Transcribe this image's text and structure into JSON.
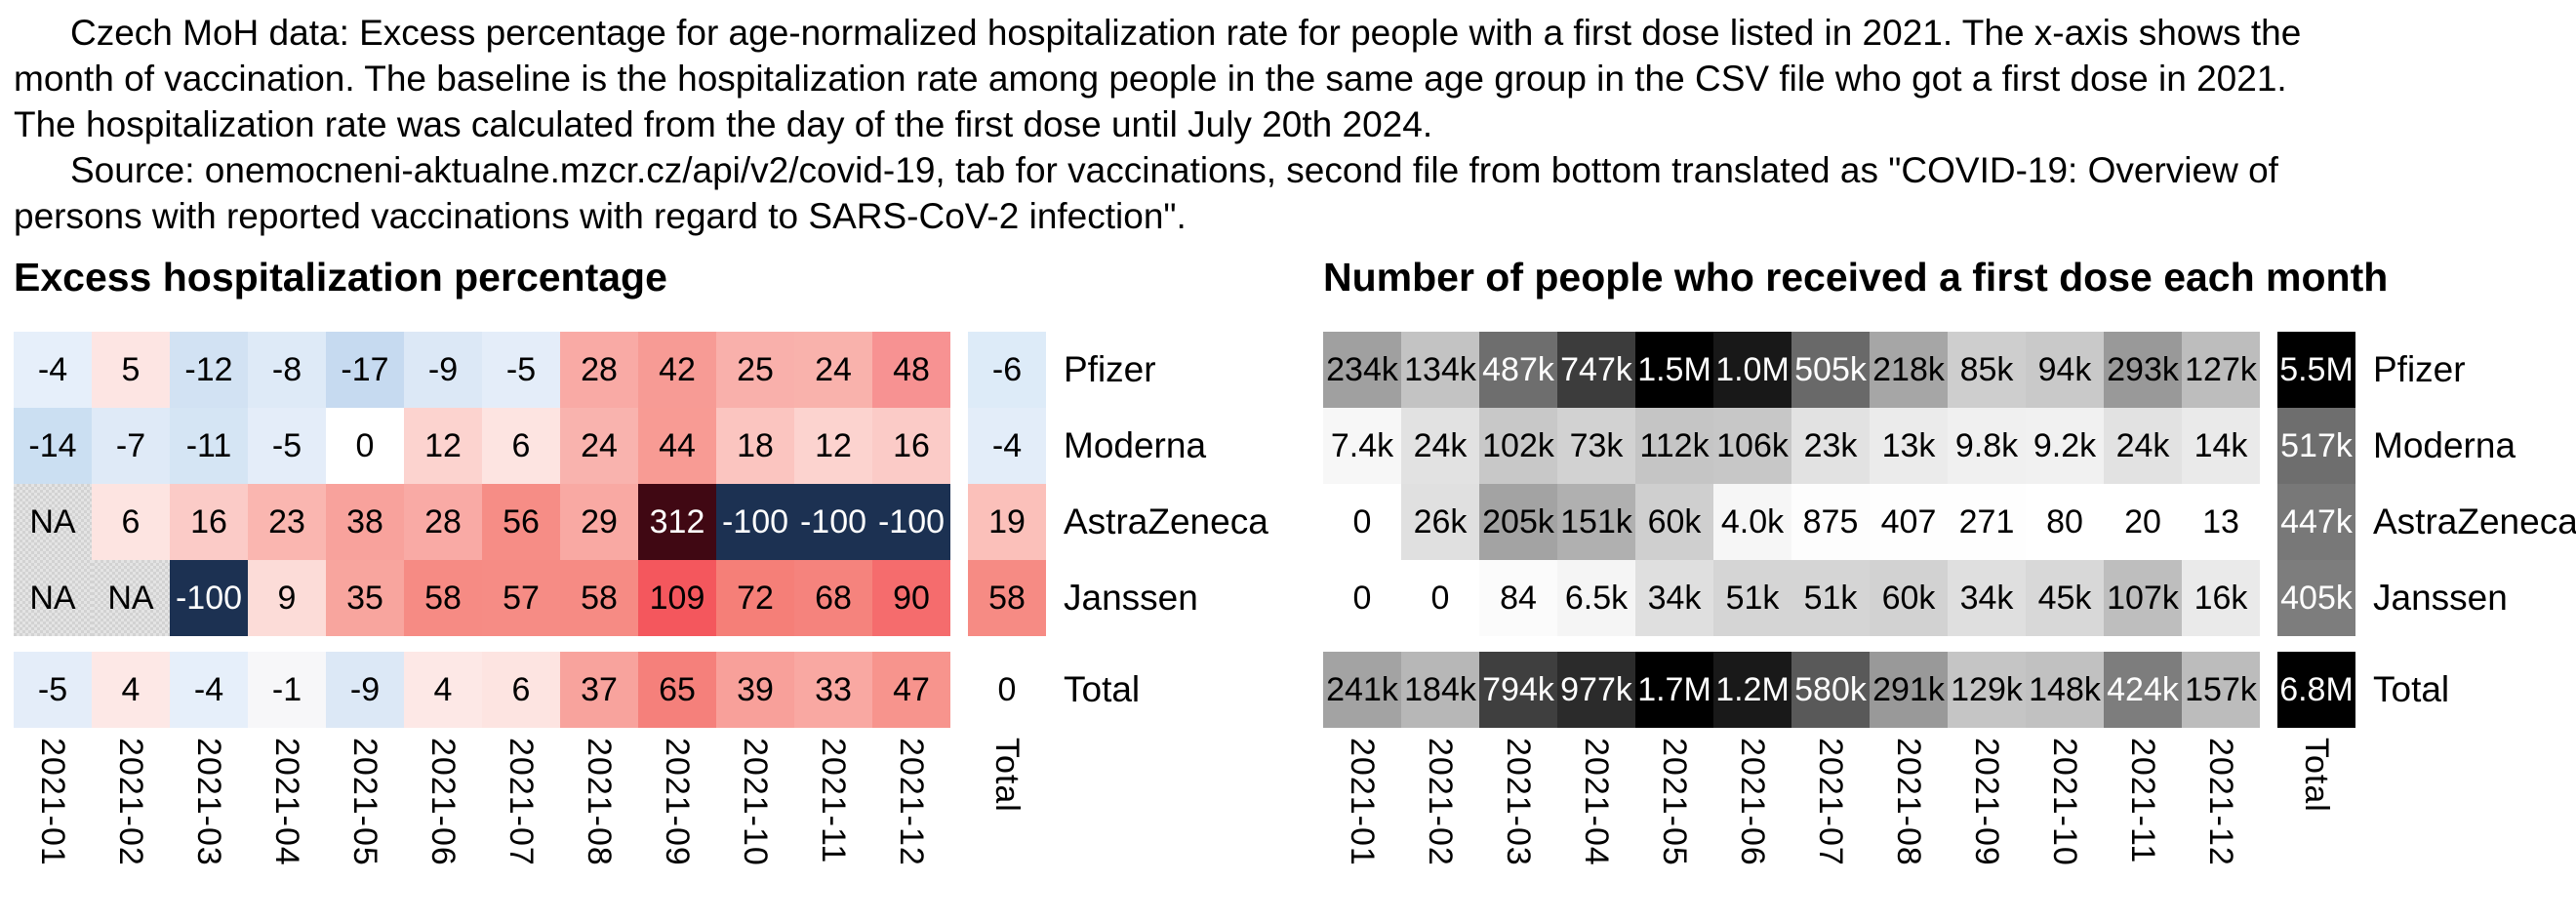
{
  "header": {
    "lines": [
      {
        "text": "Czech MoH data: Excess percentage for age-normalized hospitalization rate for people with a first dose listed in 2021. The x-axis shows the",
        "indent": true
      },
      {
        "text": "month of vaccination. The baseline is the hospitalization rate among people in the same age group in the CSV file who got a first dose in 2021.",
        "indent": false
      },
      {
        "text": "The hospitalization rate was calculated from the day of the first dose until July 20th 2024.",
        "indent": false
      },
      {
        "text": "Source: onemocneni-aktualne.mzcr.cz/api/v2/covid-19, tab for vaccinations, second file from bottom translated as \"COVID-19: Overview of",
        "indent": true
      },
      {
        "text": "persons with reported vaccinations with regard to SARS-CoV-2 infection\".",
        "indent": false
      }
    ]
  },
  "chart_data": [
    {
      "id": "excess-hospitalization",
      "type": "heatmap",
      "title": "Excess hospitalization percentage",
      "x_labels": [
        "2021-01",
        "2021-02",
        "2021-03",
        "2021-04",
        "2021-05",
        "2021-06",
        "2021-07",
        "2021-08",
        "2021-09",
        "2021-10",
        "2021-11",
        "2021-12"
      ],
      "total_column_label": "Total",
      "x_label_rotation_deg": 90,
      "color_scale": {
        "type": "diverging",
        "negative_end": "#1c3152",
        "zero": "#ffffff",
        "positive_end": "#400813"
      },
      "rows": [
        {
          "label": "Pfizer",
          "display": [
            "-4",
            "5",
            "-12",
            "-8",
            "-17",
            "-9",
            "-5",
            "28",
            "42",
            "25",
            "24",
            "48",
            "-6"
          ],
          "values": [
            -4,
            5,
            -12,
            -8,
            -17,
            -9,
            -5,
            28,
            42,
            25,
            24,
            48,
            -6
          ],
          "bg": [
            "#e6effa",
            "#fde5e3",
            "#d2e2f3",
            "#deeaf7",
            "#c6daf0",
            "#dce8f6",
            "#e4edf9",
            "#f9aaa5",
            "#f79b95",
            "#f9b0ab",
            "#f9b2ac",
            "#f79292",
            "#ddebf8"
          ],
          "fg": [
            "#000",
            "#000",
            "#000",
            "#000",
            "#000",
            "#000",
            "#000",
            "#000",
            "#000",
            "#000",
            "#000",
            "#000",
            "#000"
          ]
        },
        {
          "label": "Moderna",
          "display": [
            "-14",
            "-7",
            "-11",
            "-5",
            "0",
            "12",
            "6",
            "24",
            "44",
            "18",
            "12",
            "16",
            "-4"
          ],
          "values": [
            -14,
            -7,
            -11,
            -5,
            0,
            12,
            6,
            24,
            44,
            18,
            12,
            16,
            -4
          ],
          "bg": [
            "#cbdff2",
            "#dfeaf7",
            "#d5e5f4",
            "#e4edf9",
            "#ffffff",
            "#fcd3cf",
            "#fde4e1",
            "#f9b3ae",
            "#f89b94",
            "#fbc5c0",
            "#fcd3cf",
            "#fbcbc7",
            "#e3edf9"
          ],
          "fg": [
            "#000",
            "#000",
            "#000",
            "#000",
            "#000",
            "#000",
            "#000",
            "#000",
            "#000",
            "#000",
            "#000",
            "#000",
            "#000"
          ]
        },
        {
          "label": "AstraZeneca",
          "display": [
            "NA",
            "6",
            "16",
            "23",
            "38",
            "28",
            "56",
            "29",
            "312",
            "-100",
            "-100",
            "-100",
            "19"
          ],
          "values": [
            null,
            6,
            16,
            23,
            38,
            28,
            56,
            29,
            312,
            -100,
            -100,
            -100,
            19
          ],
          "bg": [
            "NA",
            "#fde4e1",
            "#fbcbc7",
            "#fab6b0",
            "#f8a29c",
            "#f9aaa5",
            "#f68d86",
            "#f9a9a3",
            "#400813",
            "#1c3152",
            "#1c3152",
            "#1c3152",
            "#fbc0ba"
          ],
          "fg": [
            "#000",
            "#000",
            "#000",
            "#000",
            "#000",
            "#000",
            "#000",
            "#000",
            "#fff",
            "#fff",
            "#fff",
            "#fff",
            "#000"
          ]
        },
        {
          "label": "Janssen",
          "display": [
            "NA",
            "NA",
            "-100",
            "9",
            "35",
            "58",
            "57",
            "58",
            "109",
            "72",
            "68",
            "90",
            "58"
          ],
          "values": [
            null,
            null,
            -100,
            9,
            35,
            58,
            57,
            58,
            109,
            72,
            68,
            90,
            58
          ],
          "bg": [
            "NA",
            "NA",
            "#1c3152",
            "#fcdcd8",
            "#f8a59e",
            "#f68b84",
            "#f68c85",
            "#f68b84",
            "#f4575d",
            "#f57f78",
            "#f5837d",
            "#f56c6d",
            "#f68b84"
          ],
          "fg": [
            "#000",
            "#000",
            "#fff",
            "#000",
            "#000",
            "#000",
            "#000",
            "#000",
            "#000",
            "#000",
            "#000",
            "#000",
            "#000"
          ]
        },
        {
          "label": "Total",
          "display": [
            "-5",
            "4",
            "-4",
            "-1",
            "-9",
            "4",
            "6",
            "37",
            "65",
            "39",
            "33",
            "47",
            "0"
          ],
          "values": [
            -5,
            4,
            -4,
            -1,
            -9,
            4,
            6,
            37,
            65,
            39,
            33,
            47,
            0
          ],
          "bg": [
            "#e4edf9",
            "#fde8e6",
            "#e6effa",
            "#f7f7f9",
            "#dce8f6",
            "#fde8e6",
            "#fde4e1",
            "#f8a39d",
            "#f5807b",
            "#f8a09a",
            "#f9a8a2",
            "#f7948d",
            "#ffffff"
          ],
          "fg": [
            "#000",
            "#000",
            "#000",
            "#000",
            "#000",
            "#000",
            "#000",
            "#000",
            "#000",
            "#000",
            "#000",
            "#000",
            "#000"
          ]
        }
      ]
    },
    {
      "id": "first-doses",
      "type": "heatmap",
      "title": "Number of people who received a first dose each month",
      "x_labels": [
        "2021-01",
        "2021-02",
        "2021-03",
        "2021-04",
        "2021-05",
        "2021-06",
        "2021-07",
        "2021-08",
        "2021-09",
        "2021-10",
        "2021-11",
        "2021-12"
      ],
      "total_column_label": "Total",
      "x_label_rotation_deg": 90,
      "color_scale": {
        "type": "sequential",
        "low": "#ffffff",
        "high": "#000000"
      },
      "rows": [
        {
          "label": "Pfizer",
          "display": [
            "234k",
            "134k",
            "487k",
            "747k",
            "1.5M",
            "1.0M",
            "505k",
            "218k",
            "85k",
            "94k",
            "293k",
            "127k",
            "5.5M"
          ],
          "values": [
            234000,
            134000,
            487000,
            747000,
            1500000,
            1000000,
            505000,
            218000,
            85000,
            94000,
            293000,
            127000,
            5500000
          ],
          "bg": [
            "#a0a0a0",
            "#c3c3c3",
            "#6e6e6e",
            "#3c3c3c",
            "#000000",
            "#181818",
            "#696969",
            "#a6a6a6",
            "#cecece",
            "#c9c9c9",
            "#999999",
            "#bdbdbd",
            "#000000"
          ],
          "fg": [
            "#000",
            "#000",
            "#fff",
            "#fff",
            "#fff",
            "#fff",
            "#fff",
            "#000",
            "#000",
            "#000",
            "#000",
            "#000",
            "#fff"
          ]
        },
        {
          "label": "Moderna",
          "display": [
            "7.4k",
            "24k",
            "102k",
            "73k",
            "112k",
            "106k",
            "23k",
            "13k",
            "9.8k",
            "9.2k",
            "24k",
            "14k",
            "517k"
          ],
          "values": [
            7400,
            24000,
            102000,
            73000,
            112000,
            106000,
            23000,
            13000,
            9800,
            9200,
            24000,
            14000,
            517000
          ],
          "bg": [
            "#f7f7f7",
            "#e2e2e2",
            "#c8c8c8",
            "#d2d2d2",
            "#c5c5c5",
            "#c7c7c7",
            "#e2e2e2",
            "#ebebeb",
            "#f0f0f0",
            "#f1f1f1",
            "#e2e2e2",
            "#eaeaea",
            "#6e6e6e"
          ],
          "fg": [
            "#000",
            "#000",
            "#000",
            "#000",
            "#000",
            "#000",
            "#000",
            "#000",
            "#000",
            "#000",
            "#000",
            "#000",
            "#fff"
          ]
        },
        {
          "label": "AstraZeneca",
          "display": [
            "0",
            "26k",
            "205k",
            "151k",
            "60k",
            "4.0k",
            "875",
            "407",
            "271",
            "80",
            "20",
            "13",
            "447k"
          ],
          "values": [
            0,
            26000,
            205000,
            151000,
            60000,
            4000,
            875,
            407,
            271,
            80,
            20,
            13,
            447000
          ],
          "bg": [
            "#ffffff",
            "#e0e0e0",
            "#a3a3a3",
            "#b0b0b0",
            "#cfcfcf",
            "#f6f6f6",
            "#fdfdfd",
            "#fefefe",
            "#fefefe",
            "#ffffff",
            "#ffffff",
            "#ffffff",
            "#787878"
          ],
          "fg": [
            "#000",
            "#000",
            "#000",
            "#000",
            "#000",
            "#000",
            "#000",
            "#000",
            "#000",
            "#000",
            "#000",
            "#000",
            "#fff"
          ]
        },
        {
          "label": "Janssen",
          "display": [
            "0",
            "0",
            "84",
            "6.5k",
            "34k",
            "51k",
            "51k",
            "60k",
            "34k",
            "45k",
            "107k",
            "16k",
            "405k"
          ],
          "values": [
            0,
            0,
            84,
            6500,
            34000,
            51000,
            51000,
            60000,
            34000,
            45000,
            107000,
            16000,
            405000
          ],
          "bg": [
            "#ffffff",
            "#ffffff",
            "#fbfbfb",
            "#f5f5f5",
            "#dfdfdf",
            "#d5d5d5",
            "#d5d5d5",
            "#d2d2d2",
            "#dfdfdf",
            "#d8d8d8",
            "#bebebe",
            "#eaeaea",
            "#7d7d7d"
          ],
          "fg": [
            "#000",
            "#000",
            "#000",
            "#000",
            "#000",
            "#000",
            "#000",
            "#000",
            "#000",
            "#000",
            "#000",
            "#000",
            "#fff"
          ]
        },
        {
          "label": "Total",
          "display": [
            "241k",
            "184k",
            "794k",
            "977k",
            "1.7M",
            "1.2M",
            "580k",
            "291k",
            "129k",
            "148k",
            "424k",
            "157k",
            "6.8M"
          ],
          "values": [
            241000,
            184000,
            794000,
            977000,
            1700000,
            1200000,
            580000,
            291000,
            129000,
            148000,
            424000,
            157000,
            6800000
          ],
          "bg": [
            "#a3a3a3",
            "#b7b7b7",
            "#3f3f3f",
            "#2b2b2b",
            "#000000",
            "#191919",
            "#595959",
            "#999999",
            "#c5c5c5",
            "#c1c1c1",
            "#7d7d7d",
            "#bcbcbc",
            "#000000"
          ],
          "fg": [
            "#000",
            "#000",
            "#fff",
            "#fff",
            "#fff",
            "#fff",
            "#fff",
            "#000",
            "#000",
            "#000",
            "#fff",
            "#000",
            "#fff"
          ]
        }
      ]
    }
  ]
}
